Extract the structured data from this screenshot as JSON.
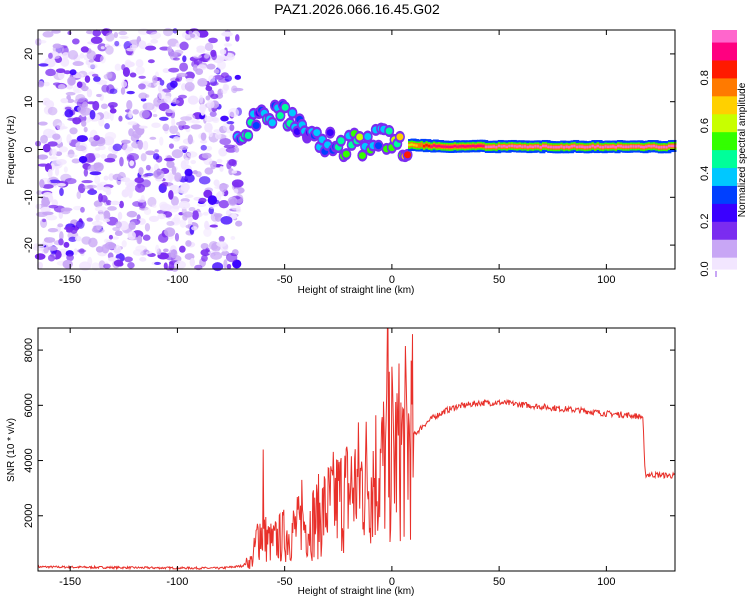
{
  "title": "PAZ1.2026.066.16.45.G02",
  "chart_data": [
    {
      "type": "heatmap",
      "name": "spectrogram",
      "xlabel": "Height of straight line (km)",
      "ylabel": "Frequency (Hz)",
      "xlim": [
        -165,
        132
      ],
      "ylim": [
        -25,
        25
      ],
      "xticks": [
        -150,
        -100,
        -50,
        0,
        50,
        100
      ],
      "yticks": [
        -20,
        -10,
        0,
        10,
        20
      ],
      "colorbar": {
        "label": "Normalized spectral amplitude",
        "range": [
          0,
          1
        ],
        "ticks": [
          0.0,
          0.2,
          0.4,
          0.6,
          0.8
        ],
        "tick_labels": [
          "0.0",
          "0.2",
          "0.4",
          "0.6",
          "0.8"
        ],
        "colors": [
          "#f2e6ff",
          "#c8a6f5",
          "#7b2cf0",
          "#3a00ff",
          "#0040ff",
          "#00c8ff",
          "#00ff9a",
          "#33ff00",
          "#c8ff00",
          "#ffd000",
          "#ff7a00",
          "#ff1a00",
          "#ff0080",
          "#ff66cc"
        ]
      },
      "features": {
        "noise_region_km": [
          -165,
          -75
        ],
        "signal_track": [
          {
            "x": -72,
            "f": 4,
            "amp": 0.25
          },
          {
            "x": -62,
            "f": 6,
            "amp": 0.2
          },
          {
            "x": -52,
            "f": 7,
            "amp": 0.25
          },
          {
            "x": -43,
            "f": 6,
            "amp": 0.2
          },
          {
            "x": -35,
            "f": 2,
            "amp": 0.15
          },
          {
            "x": -25,
            "f": 1,
            "amp": 0.3
          },
          {
            "x": -15,
            "f": 1,
            "amp": 0.35
          },
          {
            "x": -5,
            "f": 2,
            "amp": 0.3
          },
          {
            "x": 5,
            "f": 1,
            "amp": 0.5
          },
          {
            "x": 20,
            "f": 0.7,
            "amp": 0.95
          },
          {
            "x": 60,
            "f": 0.6,
            "amp": 0.97
          },
          {
            "x": 100,
            "f": 0.6,
            "amp": 0.97
          },
          {
            "x": 132,
            "f": 0.6,
            "amp": 0.97
          }
        ]
      }
    },
    {
      "type": "line",
      "name": "snr",
      "xlabel": "Height of straight line (km)",
      "ylabel": "SNR (10 * v/v)",
      "xlim": [
        -165,
        132
      ],
      "ylim": [
        0,
        8800
      ],
      "xticks": [
        -150,
        -100,
        -50,
        0,
        50,
        100
      ],
      "yticks": [
        2000,
        4000,
        6000,
        8000
      ],
      "color": "#e8302a",
      "series": [
        {
          "name": "SNR",
          "points": [
            [
              -165,
              150
            ],
            [
              -120,
              120
            ],
            [
              -80,
              100
            ],
            [
              -70,
              180
            ],
            [
              -65,
              400
            ],
            [
              -62,
              1500
            ],
            [
              -59,
              1200
            ],
            [
              -56,
              1000
            ],
            [
              -50,
              1300
            ],
            [
              -45,
              1500
            ],
            [
              -40,
              1700
            ],
            [
              -35,
              1900
            ],
            [
              -30,
              2300
            ],
            [
              -25,
              2600
            ],
            [
              -20,
              2900
            ],
            [
              -15,
              3200
            ],
            [
              -10,
              3500
            ],
            [
              -5,
              3800
            ],
            [
              0,
              4100
            ],
            [
              5,
              4500
            ],
            [
              10,
              4900
            ],
            [
              15,
              5300
            ],
            [
              20,
              5600
            ],
            [
              25,
              5800
            ],
            [
              30,
              5950
            ],
            [
              40,
              6080
            ],
            [
              50,
              6100
            ],
            [
              60,
              6030
            ],
            [
              70,
              5950
            ],
            [
              80,
              5870
            ],
            [
              90,
              5800
            ],
            [
              100,
              5700
            ],
            [
              110,
              5650
            ],
            [
              117,
              5580
            ],
            [
              118,
              3500
            ],
            [
              132,
              3450
            ]
          ]
        }
      ],
      "spikes": [
        {
          "x": -60,
          "y": 4400
        },
        {
          "x": -42,
          "y": 3300
        },
        {
          "x": -2,
          "y": 8800
        },
        {
          "x": 0,
          "y": 7400
        }
      ]
    }
  ]
}
